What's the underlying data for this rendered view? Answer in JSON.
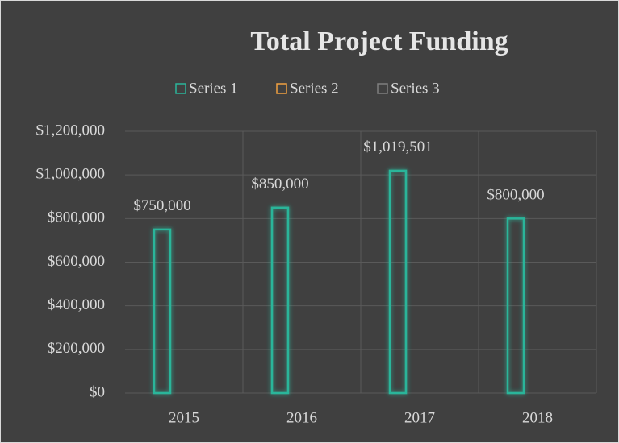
{
  "chart_data": {
    "type": "bar",
    "title": "Total Project Funding",
    "categories": [
      "2015",
      "2016",
      "2017",
      "2018"
    ],
    "series": [
      {
        "name": "Series 1",
        "color": "#2bb59a",
        "values": [
          750000,
          850000,
          1019501,
          800000
        ],
        "value_labels": [
          "$750,000",
          "$850,000",
          "$1,019,501",
          "$800,000"
        ]
      },
      {
        "name": "Series 2",
        "color": "#f0a040",
        "values": [
          null,
          null,
          null,
          null
        ]
      },
      {
        "name": "Series 3",
        "color": "#7f7f7f",
        "values": [
          null,
          null,
          null,
          null
        ]
      }
    ],
    "ylim": [
      0,
      1200000
    ],
    "yticks": [
      {
        "value": 0,
        "label": "$0"
      },
      {
        "value": 200000,
        "label": "$200,000"
      },
      {
        "value": 400000,
        "label": "$400,000"
      },
      {
        "value": 600000,
        "label": "$600,000"
      },
      {
        "value": 800000,
        "label": "$800,000"
      },
      {
        "value": 1000000,
        "label": "$1,000,000"
      },
      {
        "value": 1200000,
        "label": "$1,200,000"
      }
    ],
    "grid": true,
    "legend": "top"
  }
}
